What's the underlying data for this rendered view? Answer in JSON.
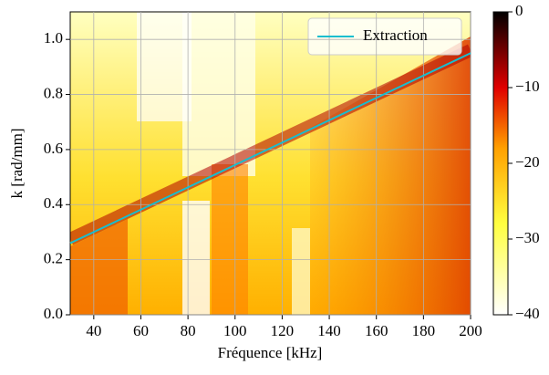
{
  "chart_data": {
    "type": "line",
    "x_label": "Fréquence [kHz]",
    "y_label": "k [rad/mm]",
    "x": [
      30,
      200
    ],
    "series": [
      {
        "name": "Extraction",
        "color": "#17becf",
        "values": [
          0.26,
          0.95
        ]
      }
    ],
    "xlim": [
      30,
      200
    ],
    "xticks": [
      40,
      60,
      80,
      100,
      120,
      140,
      160,
      180,
      200
    ],
    "ylim": [
      0,
      1.1
    ],
    "yticks": [
      {
        "value": 0,
        "label": "0.0"
      },
      {
        "value": 0.2,
        "label": "0.2"
      },
      {
        "value": 0.4,
        "label": "0.4"
      },
      {
        "value": 0.6,
        "label": "0.6"
      },
      {
        "value": 0.8,
        "label": "0.8"
      },
      {
        "value": 1.0,
        "label": "1.0"
      }
    ],
    "grid": true,
    "legend": "upper right",
    "colorbar": {
      "lim": [
        -40,
        0
      ],
      "ticks": [
        {
          "value": -40,
          "label": "−40"
        },
        {
          "value": -30,
          "label": "−30"
        },
        {
          "value": -20,
          "label": "−20"
        },
        {
          "value": -10,
          "label": "−10"
        },
        0
      ]
    }
  }
}
